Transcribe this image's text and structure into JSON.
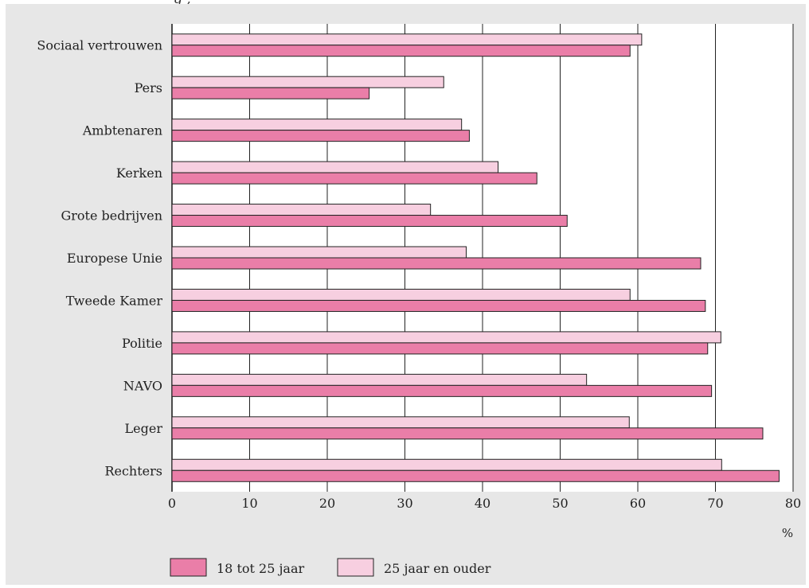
{
  "header_fragment": "g                    ,",
  "chart_data": {
    "type": "bar",
    "orientation": "horizontal",
    "categories": [
      "Sociaal vertrouwen",
      "Pers",
      "Ambtenaren",
      "Kerken",
      "Grote bedrijven",
      "Europese Unie",
      "Tweede Kamer",
      "Politie",
      "NAVO",
      "Leger",
      "Rechters"
    ],
    "series": [
      {
        "name": "25 jaar en ouder",
        "values": [
          60.5,
          35,
          37.3,
          42,
          33.3,
          37.9,
          59,
          70.7,
          53.4,
          58.9,
          70.8
        ],
        "color": "#f7cfe0"
      },
      {
        "name": "18 tot 25 jaar",
        "values": [
          59,
          25.4,
          38.3,
          47,
          50.9,
          68.1,
          68.7,
          69,
          69.5,
          76.1,
          78.2
        ],
        "color": "#ea7ea8"
      }
    ],
    "xticks": [
      "0",
      "10",
      "20",
      "30",
      "40",
      "50",
      "60",
      "70",
      "80"
    ],
    "xlim": [
      0,
      80
    ],
    "unit_label": "%",
    "grid": true,
    "legend_position": "bottom",
    "legend": [
      "18 tot 25 jaar",
      "25 jaar en ouder"
    ]
  }
}
